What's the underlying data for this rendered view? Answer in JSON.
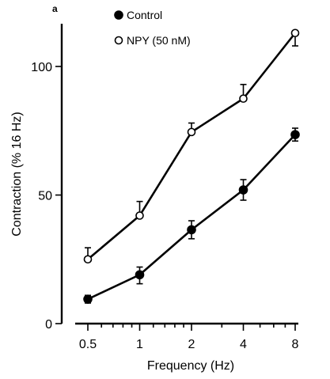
{
  "panel_label": "a",
  "chart_data": {
    "type": "line",
    "x": [
      0.5,
      1,
      2,
      4,
      8
    ],
    "x_scale": "log2",
    "x_tick_labels": [
      "0.5",
      "1",
      "2",
      "4",
      "8"
    ],
    "xlabel": "Frequency (Hz)",
    "ylabel": "Contraction (% 16 Hz)",
    "ylim": [
      0,
      115
    ],
    "y_ticks": [
      0,
      50,
      100
    ],
    "y_tick_labels": [
      "0",
      "50",
      "100"
    ],
    "legend_position": "top-center",
    "series": [
      {
        "name": "Control",
        "marker": "filled-circle",
        "values": [
          9.5,
          19,
          36.5,
          52,
          73.5
        ],
        "error_upper": [
          1.5,
          3,
          3.5,
          4,
          2.5
        ],
        "error_lower": [
          1.5,
          3.5,
          3.5,
          4,
          2.5
        ]
      },
      {
        "name": "NPY (50 nM)",
        "marker": "open-circle",
        "values": [
          25,
          42,
          74.5,
          87.5,
          113
        ],
        "error_upper": [
          4.5,
          5.5,
          3.5,
          5.5,
          0
        ],
        "error_lower": [
          0,
          0,
          0,
          0,
          5
        ]
      }
    ]
  }
}
